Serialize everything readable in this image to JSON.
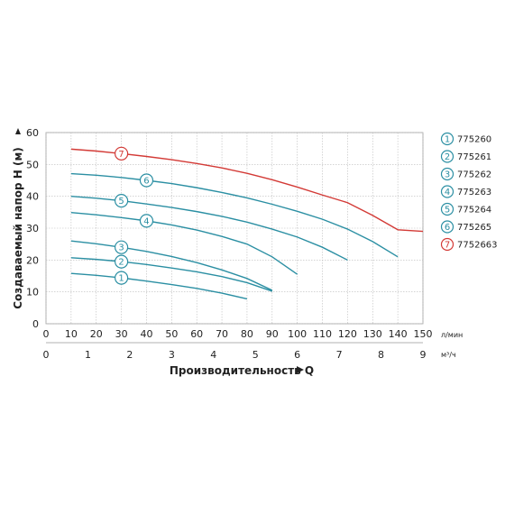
{
  "chart_data": {
    "type": "line",
    "ylabel": "Создаваемый напор H (м)",
    "xlabel": "Производительность Q",
    "x_unit_top": "л/мин",
    "x_unit_bottom": "м³/ч",
    "x_ticks_lmin": [
      0,
      10,
      20,
      30,
      40,
      50,
      60,
      70,
      80,
      90,
      100,
      110,
      120,
      130,
      140,
      150
    ],
    "x_ticks_m3h": [
      0,
      1,
      2,
      3,
      4,
      5,
      6,
      7,
      8,
      9
    ],
    "y_ticks": [
      0,
      10,
      20,
      30,
      40,
      50,
      60
    ],
    "xlim": [
      0,
      150
    ],
    "ylim": [
      0,
      60
    ],
    "grid": true,
    "legend_placement": "right",
    "series": [
      {
        "name": "775260",
        "badge": "1",
        "color": "#2b8fa3",
        "x": [
          10,
          20,
          30,
          40,
          50,
          60,
          70,
          80
        ],
        "y": [
          15.8,
          15.2,
          14.4,
          13.4,
          12.3,
          11.1,
          9.6,
          7.8
        ]
      },
      {
        "name": "775261",
        "badge": "2",
        "color": "#2b8fa3",
        "x": [
          10,
          20,
          30,
          40,
          50,
          60,
          70,
          80,
          90
        ],
        "y": [
          20.7,
          20.2,
          19.5,
          18.6,
          17.5,
          16.3,
          14.8,
          12.9,
          10.2
        ]
      },
      {
        "name": "775262",
        "badge": "3",
        "color": "#2b8fa3",
        "x": [
          10,
          20,
          30,
          40,
          50,
          60,
          70,
          80,
          90
        ],
        "y": [
          26,
          25.1,
          24,
          22.7,
          21.1,
          19.2,
          16.9,
          14.2,
          10.5
        ]
      },
      {
        "name": "775263",
        "badge": "4",
        "color": "#2b8fa3",
        "x": [
          10,
          20,
          30,
          40,
          50,
          60,
          70,
          80,
          90,
          100
        ],
        "y": [
          34.9,
          34.2,
          33.3,
          32.3,
          31,
          29.4,
          27.4,
          25,
          21,
          15.5
        ]
      },
      {
        "name": "775264",
        "badge": "5",
        "color": "#2b8fa3",
        "x": [
          10,
          20,
          30,
          40,
          50,
          60,
          70,
          80,
          90,
          100,
          110,
          120
        ],
        "y": [
          40,
          39.4,
          38.6,
          37.6,
          36.5,
          35.2,
          33.7,
          31.9,
          29.7,
          27.2,
          24,
          20
        ]
      },
      {
        "name": "775265",
        "badge": "6",
        "color": "#2b8fa3",
        "x": [
          10,
          20,
          30,
          40,
          50,
          60,
          70,
          80,
          90,
          100,
          110,
          120,
          130,
          140
        ],
        "y": [
          47.1,
          46.6,
          45.9,
          45,
          44,
          42.7,
          41.2,
          39.5,
          37.5,
          35.3,
          32.8,
          29.7,
          25.8,
          21
        ]
      },
      {
        "name": "7752663",
        "badge": "7",
        "color": "#d33a36",
        "x": [
          10,
          20,
          30,
          40,
          50,
          60,
          70,
          80,
          90,
          100,
          110,
          120,
          130,
          140,
          150
        ],
        "y": [
          54.8,
          54.2,
          53.4,
          52.5,
          51.5,
          50.3,
          48.9,
          47.2,
          45.2,
          42.9,
          40.4,
          38,
          34,
          29.5,
          29
        ]
      }
    ],
    "badge_positions_x": [
      30,
      30,
      30,
      40,
      30,
      40,
      30
    ]
  }
}
